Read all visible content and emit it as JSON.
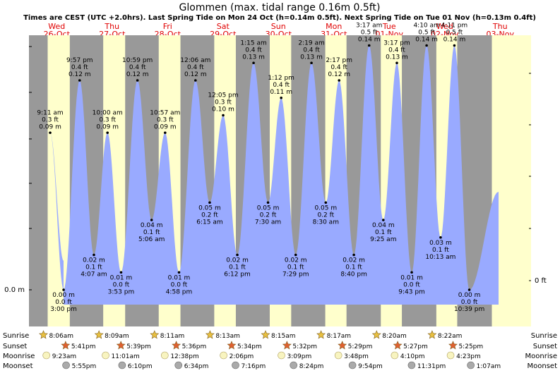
{
  "title": "Glommen (max. tidal range 0.16m 0.5ft)",
  "subtitle": "Times are CEST (UTC +2.0hrs). Last Spring Tide on Mon 24 Oct (h=0.14m 0.5ft). Next Spring Tide on Tue 01 Nov (h=0.13m 0.4ft)",
  "colors": {
    "night": "#999999",
    "day": "#ffffcc",
    "water": "#99aaff",
    "sun_icon": "#e8c040",
    "sunset_icon": "#e06030",
    "moon_icon": "#f8f4c0",
    "moonset_icon": "#aaaaaa"
  },
  "chart_data": {
    "type": "area",
    "ylabel_left": "0.0 m",
    "ylabel_right": "0 ft",
    "ylim": [
      -0.02,
      0.17
    ],
    "days": [
      {
        "name": "Wed",
        "date": "26-Oct"
      },
      {
        "name": "Thu",
        "date": "27-Oct"
      },
      {
        "name": "Fri",
        "date": "28-Oct"
      },
      {
        "name": "Sat",
        "date": "29-Oct"
      },
      {
        "name": "Sun",
        "date": "30-Oct"
      },
      {
        "name": "Mon",
        "date": "31-Oct"
      },
      {
        "name": "Tue",
        "date": "01-Nov"
      },
      {
        "name": "Wed",
        "date": "02-Nov"
      },
      {
        "name": "Thu",
        "date": "03-Nov"
      }
    ],
    "tides": [
      {
        "day": 0,
        "hour": 9.183,
        "time": "9:11 am",
        "ft": "0.3 ft",
        "m": "0.09 m",
        "value": 0.09,
        "type": "high"
      },
      {
        "day": 0,
        "hour": 15.0,
        "time": "3:00 pm",
        "ft": "0.0 ft",
        "m": "0.00 m",
        "value": 0.0,
        "type": "low"
      },
      {
        "day": 0,
        "hour": 21.95,
        "time": "9:57 pm",
        "ft": "0.4 ft",
        "m": "0.12 m",
        "value": 0.12,
        "type": "high"
      },
      {
        "day": 1,
        "hour": 4.117,
        "time": "4:07 am",
        "ft": "0.1 ft",
        "m": "0.02 m",
        "value": 0.02,
        "type": "low"
      },
      {
        "day": 1,
        "hour": 10.0,
        "time": "10:00 am",
        "ft": "0.3 ft",
        "m": "0.09 m",
        "value": 0.09,
        "type": "high"
      },
      {
        "day": 1,
        "hour": 15.883,
        "time": "3:53 pm",
        "ft": "0.0 ft",
        "m": "0.01 m",
        "value": 0.01,
        "type": "low"
      },
      {
        "day": 1,
        "hour": 22.983,
        "time": "10:59 pm",
        "ft": "0.4 ft",
        "m": "0.12 m",
        "value": 0.12,
        "type": "high"
      },
      {
        "day": 2,
        "hour": 5.1,
        "time": "5:06 am",
        "ft": "0.1 ft",
        "m": "0.04 m",
        "value": 0.04,
        "type": "low"
      },
      {
        "day": 2,
        "hour": 10.95,
        "time": "10:57 am",
        "ft": "0.3 ft",
        "m": "0.09 m",
        "value": 0.09,
        "type": "high"
      },
      {
        "day": 2,
        "hour": 16.967,
        "time": "4:58 pm",
        "ft": "0.0 ft",
        "m": "0.01 m",
        "value": 0.01,
        "type": "low"
      },
      {
        "day": 3,
        "hour": 0.1,
        "time": "12:06 am",
        "ft": "0.4 ft",
        "m": "0.12 m",
        "value": 0.12,
        "type": "high"
      },
      {
        "day": 3,
        "hour": 6.25,
        "time": "6:15 am",
        "ft": "0.2 ft",
        "m": "0.05 m",
        "value": 0.05,
        "type": "low"
      },
      {
        "day": 3,
        "hour": 12.083,
        "time": "12:05 pm",
        "ft": "0.3 ft",
        "m": "0.10 m",
        "value": 0.1,
        "type": "high"
      },
      {
        "day": 3,
        "hour": 18.2,
        "time": "6:12 pm",
        "ft": "0.1 ft",
        "m": "0.02 m",
        "value": 0.02,
        "type": "low"
      },
      {
        "day": 4,
        "hour": 1.25,
        "time": "1:15 am",
        "ft": "0.4 ft",
        "m": "0.13 m",
        "value": 0.13,
        "type": "high"
      },
      {
        "day": 4,
        "hour": 7.5,
        "time": "7:30 am",
        "ft": "0.2 ft",
        "m": "0.05 m",
        "value": 0.05,
        "type": "low"
      },
      {
        "day": 4,
        "hour": 13.2,
        "time": "1:12 pm",
        "ft": "0.4 ft",
        "m": "0.11 m",
        "value": 0.11,
        "type": "high"
      },
      {
        "day": 4,
        "hour": 19.483,
        "time": "7:29 pm",
        "ft": "0.1 ft",
        "m": "0.02 m",
        "value": 0.02,
        "type": "low"
      },
      {
        "day": 5,
        "hour": 2.317,
        "time": "2:19 am",
        "ft": "0.4 ft",
        "m": "0.13 m",
        "value": 0.13,
        "type": "high"
      },
      {
        "day": 5,
        "hour": 8.5,
        "time": "8:30 am",
        "ft": "0.2 ft",
        "m": "0.05 m",
        "value": 0.05,
        "type": "low"
      },
      {
        "day": 5,
        "hour": 14.283,
        "time": "2:17 pm",
        "ft": "0.4 ft",
        "m": "0.12 m",
        "value": 0.12,
        "type": "high"
      },
      {
        "day": 5,
        "hour": 20.667,
        "time": "8:40 pm",
        "ft": "0.1 ft",
        "m": "0.02 m",
        "value": 0.02,
        "type": "low"
      },
      {
        "day": 6,
        "hour": 3.283,
        "time": "3:17 am",
        "ft": "0.5 ft",
        "m": "0.14 m",
        "value": 0.14,
        "type": "high"
      },
      {
        "day": 6,
        "hour": 9.417,
        "time": "9:25 am",
        "ft": "0.1 ft",
        "m": "0.04 m",
        "value": 0.04,
        "type": "low"
      },
      {
        "day": 6,
        "hour": 15.283,
        "time": "3:17 pm",
        "ft": "0.4 ft",
        "m": "0.13 m",
        "value": 0.13,
        "type": "high"
      },
      {
        "day": 6,
        "hour": 21.717,
        "time": "9:43 pm",
        "ft": "0.0 ft",
        "m": "0.01 m",
        "value": 0.01,
        "type": "low"
      },
      {
        "day": 7,
        "hour": 4.167,
        "time": "4:10 am",
        "ft": "0.5 ft",
        "m": "0.14 m",
        "value": 0.14,
        "type": "high"
      },
      {
        "day": 7,
        "hour": 10.217,
        "time": "10:13 am",
        "ft": "0.1 ft",
        "m": "0.03 m",
        "value": 0.03,
        "type": "low"
      },
      {
        "day": 7,
        "hour": 16.183,
        "time": "4:11 pm",
        "ft": "0.5 ft",
        "m": "0.14 m",
        "value": 0.14,
        "type": "high"
      },
      {
        "day": 7,
        "hour": 22.65,
        "time": "10:39 pm",
        "ft": "0.0 ft",
        "m": "0.00 m",
        "value": 0.0,
        "type": "low"
      }
    ],
    "sunrise": [
      {
        "day": 0,
        "hour": 8.1,
        "time": "8:06am"
      },
      {
        "day": 1,
        "hour": 8.15,
        "time": "8:09am"
      },
      {
        "day": 2,
        "hour": 8.183,
        "time": "8:11am"
      },
      {
        "day": 3,
        "hour": 8.217,
        "time": "8:13am"
      },
      {
        "day": 4,
        "hour": 8.25,
        "time": "8:15am"
      },
      {
        "day": 5,
        "hour": 8.283,
        "time": "8:17am"
      },
      {
        "day": 6,
        "hour": 8.333,
        "time": "8:20am"
      },
      {
        "day": 7,
        "hour": 8.367,
        "time": "8:22am"
      }
    ],
    "sunset": [
      {
        "day": 0,
        "hour": 17.683,
        "time": "5:41pm"
      },
      {
        "day": 1,
        "hour": 17.65,
        "time": "5:39pm"
      },
      {
        "day": 2,
        "hour": 17.6,
        "time": "5:36pm"
      },
      {
        "day": 3,
        "hour": 17.567,
        "time": "5:34pm"
      },
      {
        "day": 4,
        "hour": 17.533,
        "time": "5:32pm"
      },
      {
        "day": 5,
        "hour": 17.483,
        "time": "5:29pm"
      },
      {
        "day": 6,
        "hour": 17.45,
        "time": "5:27pm"
      },
      {
        "day": 7,
        "hour": 17.417,
        "time": "5:25pm"
      }
    ],
    "moonrise": [
      {
        "day": 0,
        "hour": 9.383,
        "time": "9:23am"
      },
      {
        "day": 1,
        "hour": 11.017,
        "time": "11:01am"
      },
      {
        "day": 2,
        "hour": 12.633,
        "time": "12:38pm"
      },
      {
        "day": 3,
        "hour": 14.1,
        "time": "2:06pm"
      },
      {
        "day": 4,
        "hour": 15.15,
        "time": "3:09pm"
      },
      {
        "day": 5,
        "hour": 15.8,
        "time": "3:48pm"
      },
      {
        "day": 6,
        "hour": 16.167,
        "time": "4:10pm"
      },
      {
        "day": 7,
        "hour": 16.383,
        "time": "4:23pm"
      }
    ],
    "moonset": [
      {
        "day": 0,
        "hour": 17.917,
        "time": "5:55pm"
      },
      {
        "day": 1,
        "hour": 18.167,
        "time": "6:10pm"
      },
      {
        "day": 2,
        "hour": 18.567,
        "time": "6:34pm"
      },
      {
        "day": 3,
        "hour": 19.267,
        "time": "7:16pm"
      },
      {
        "day": 4,
        "hour": 20.4,
        "time": "8:24pm"
      },
      {
        "day": 5,
        "hour": 21.9,
        "time": "9:54pm"
      },
      {
        "day": 6,
        "hour": 23.517,
        "time": "11:31pm"
      },
      {
        "day": 8,
        "hour": 1.117,
        "time": "1:07am"
      }
    ]
  },
  "rows": {
    "sunrise": "Sunrise",
    "sunset": "Sunset",
    "moonrise": "Moonrise",
    "moonset": "Moonset"
  }
}
